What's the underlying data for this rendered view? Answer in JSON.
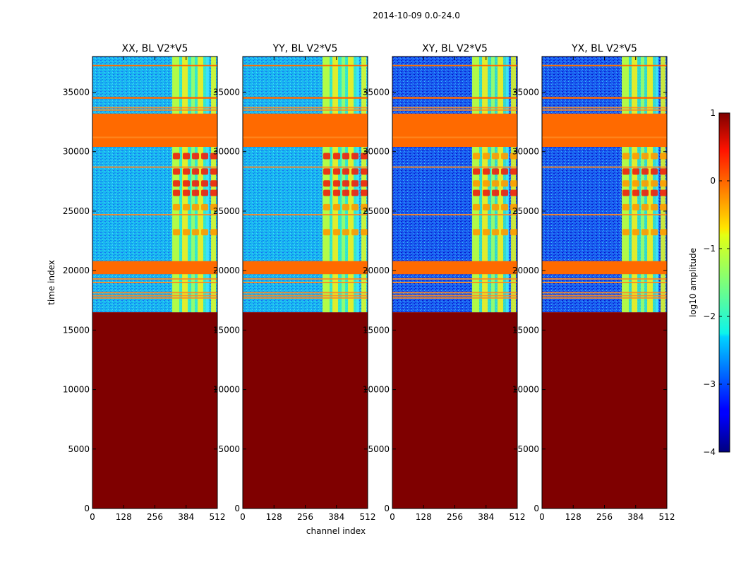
{
  "chart_data": {
    "type": "heatmap",
    "suptitle": "2014-10-09 0.0-24.0",
    "xlabel": "channel index",
    "ylabel": "time index",
    "xlim": [
      0,
      512
    ],
    "ylim": [
      0,
      38000
    ],
    "x_ticks": [
      0,
      128,
      256,
      384,
      512
    ],
    "y_ticks": [
      0,
      5000,
      10000,
      15000,
      20000,
      25000,
      30000,
      35000
    ],
    "panels": [
      {
        "title": "XX, BL V2*V5",
        "background_level": "cyan"
      },
      {
        "title": "YY, BL V2*V5",
        "background_level": "cyan"
      },
      {
        "title": "XY, BL V2*V5",
        "background_level": "blue"
      },
      {
        "title": "YX, BL V2*V5",
        "background_level": "blue"
      }
    ],
    "no_data_below_time": 16500,
    "flagged_time_ranges": [
      [
        19700,
        20800
      ],
      [
        30400,
        33200
      ],
      [
        34450,
        34600
      ],
      [
        37200,
        37300
      ]
    ],
    "flag_lines": [
      17700,
      17900,
      18150,
      19000,
      19300,
      24700,
      28700,
      31200,
      33500,
      33700
    ],
    "hot_channel_range": [
      327,
      475
    ],
    "colorbar": {
      "label": "log10 amplitude",
      "min": -4,
      "max": 1,
      "ticks": [
        "1",
        "0",
        "−1",
        "−2",
        "−3",
        "−4"
      ],
      "colormap": "jet"
    }
  }
}
